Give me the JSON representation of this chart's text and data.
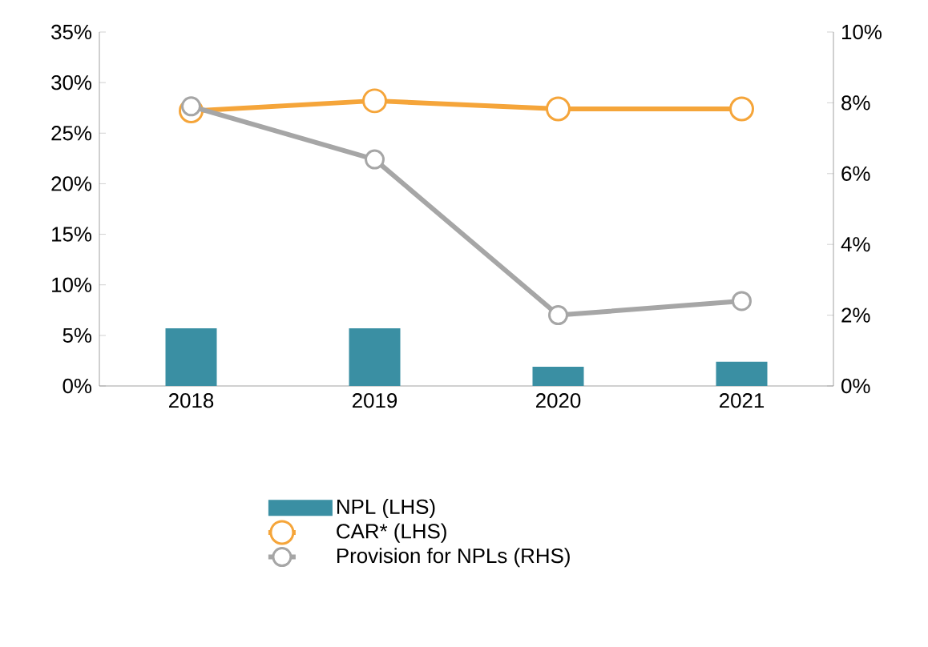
{
  "chart_data": {
    "type": "bar",
    "categories": [
      "2018",
      "2019",
      "2020",
      "2021"
    ],
    "series": [
      {
        "name": "NPL (LHS)",
        "color": "#3a8fa3",
        "values": [
          5.7,
          5.7,
          1.9,
          2.4
        ]
      },
      {
        "name": "CAR* (LHS)",
        "type": "line",
        "color": "#f5a53a",
        "values": [
          27.2,
          28.2,
          27.4,
          27.4
        ]
      },
      {
        "name": "Provision for NPLs (RHS)",
        "type": "line",
        "color": "#a6a6a6",
        "axis": "y2",
        "values": [
          7.9,
          6.4,
          2.0,
          2.4
        ]
      }
    ],
    "ylim": [
      0,
      35
    ],
    "yticks": [
      {
        "value": 0,
        "label": "0%"
      },
      {
        "value": 5,
        "label": "5%"
      },
      {
        "value": 10,
        "label": "10%"
      },
      {
        "value": 15,
        "label": "15%"
      },
      {
        "value": 20,
        "label": "20%"
      },
      {
        "value": 25,
        "label": "25%"
      },
      {
        "value": 30,
        "label": "30%"
      },
      {
        "value": 35,
        "label": "35%"
      }
    ],
    "y2lim": [
      0,
      10
    ],
    "y2ticks": [
      {
        "value": 0,
        "label": "0%"
      },
      {
        "value": 2,
        "label": "2%"
      },
      {
        "value": 4,
        "label": "4%"
      },
      {
        "value": 6,
        "label": "6%"
      },
      {
        "value": 8,
        "label": "8%"
      },
      {
        "value": 10,
        "label": "10%"
      }
    ],
    "legend": "bottom",
    "marker": "circle",
    "grid": false
  }
}
